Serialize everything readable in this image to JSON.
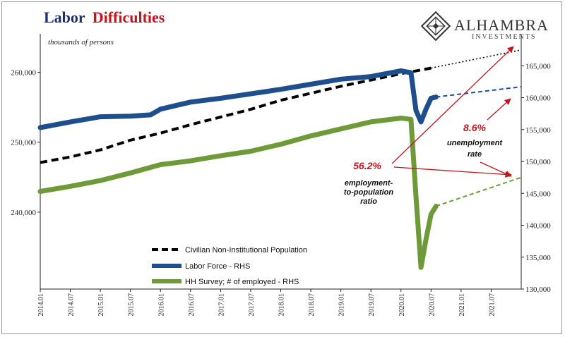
{
  "title_part1": "Labor",
  "title_part2": "Difficulties",
  "subtitle": "thousands of persons",
  "logo": {
    "name": "ALHAMBRA",
    "sub": "INVESTMENTS",
    "icon": "diamond-lattice-icon"
  },
  "chart_data": {
    "type": "line",
    "y_left": {
      "ticks": [
        240000,
        250000,
        260000
      ],
      "tick_labels": [
        "240,000",
        "250,000",
        "260,000"
      ],
      "range": [
        229000,
        265500
      ]
    },
    "y_right": {
      "ticks": [
        130000,
        135000,
        140000,
        145000,
        150000,
        155000,
        160000,
        165000
      ],
      "tick_labels": [
        "130,000",
        "135,000",
        "140,000",
        "145,000",
        "150,000",
        "155,000",
        "160,000",
        "165,000"
      ],
      "range": [
        130000,
        170000
      ]
    },
    "x_ticks": [
      "2014.01",
      "2014.07",
      "2015.01",
      "2015.07",
      "2016.01",
      "2016.07",
      "2017.01",
      "2017.07",
      "2018.01",
      "2018.07",
      "2019.01",
      "2019.07",
      "2020.01",
      "2020.07",
      "2021.01",
      "2021.07"
    ],
    "x_range_months": [
      0,
      96
    ],
    "series": [
      {
        "name": "Civilian Non-Institutional Population",
        "axis": "left",
        "color": "#000000",
        "style": "dashed",
        "points": [
          [
            0,
            247100
          ],
          [
            6,
            247900
          ],
          [
            12,
            248900
          ],
          [
            18,
            250300
          ],
          [
            24,
            251300
          ],
          [
            30,
            252500
          ],
          [
            36,
            253600
          ],
          [
            42,
            254700
          ],
          [
            48,
            256000
          ],
          [
            54,
            257000
          ],
          [
            60,
            258000
          ],
          [
            66,
            258900
          ],
          [
            72,
            259800
          ],
          [
            78,
            260600
          ]
        ],
        "projection": [
          [
            78,
            260600
          ],
          [
            96,
            263200
          ]
        ]
      },
      {
        "name": "Labor Force - RHS",
        "axis": "right",
        "color": "#1f4e8c",
        "style": "solid",
        "points": [
          [
            0,
            155300
          ],
          [
            6,
            156200
          ],
          [
            12,
            157000
          ],
          [
            18,
            157100
          ],
          [
            22,
            157300
          ],
          [
            24,
            158200
          ],
          [
            30,
            159300
          ],
          [
            36,
            159900
          ],
          [
            42,
            160600
          ],
          [
            48,
            161300
          ],
          [
            54,
            162100
          ],
          [
            60,
            162900
          ],
          [
            66,
            163300
          ],
          [
            72,
            164200
          ],
          [
            74,
            163900
          ],
          [
            75,
            158000
          ],
          [
            76,
            156200
          ],
          [
            77,
            158200
          ],
          [
            78,
            159900
          ],
          [
            79,
            160100
          ]
        ],
        "projection": [
          [
            79,
            160100
          ],
          [
            96,
            161700
          ]
        ]
      },
      {
        "name": "HH Survey; # of employed - RHS",
        "axis": "right",
        "color": "#6e9a3a",
        "style": "solid",
        "points": [
          [
            0,
            145300
          ],
          [
            6,
            146100
          ],
          [
            12,
            147000
          ],
          [
            18,
            148200
          ],
          [
            24,
            149500
          ],
          [
            30,
            150100
          ],
          [
            36,
            150900
          ],
          [
            42,
            151600
          ],
          [
            48,
            152700
          ],
          [
            54,
            154000
          ],
          [
            60,
            155100
          ],
          [
            66,
            156200
          ],
          [
            72,
            156800
          ],
          [
            74,
            156600
          ],
          [
            75,
            144500
          ],
          [
            76,
            133400
          ],
          [
            77,
            137800
          ],
          [
            78,
            141700
          ],
          [
            79,
            143000
          ]
        ],
        "projection": [
          [
            79,
            143000
          ],
          [
            96,
            147500
          ]
        ]
      }
    ],
    "annotations": [
      {
        "value": "8.6%",
        "label_lines": [
          "unemployment",
          "rate"
        ]
      },
      {
        "value": "56.2%",
        "label_lines": [
          "employment-",
          "to-population",
          "ratio"
        ]
      }
    ]
  }
}
